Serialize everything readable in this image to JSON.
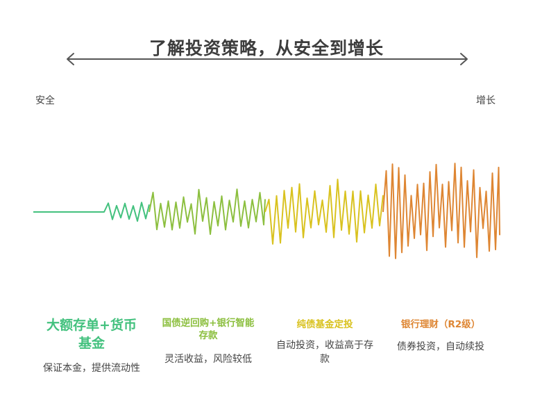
{
  "title": "了解投资策略，从安全到增长",
  "axis": {
    "left_label": "安全",
    "right_label": "增长"
  },
  "colors": {
    "green": "#43c17e",
    "lightgreen": "#8cbf3f",
    "yellow": "#d9c21f",
    "orange": "#de8633",
    "text": "#3d3d3d",
    "axis": "#555555"
  },
  "columns": [
    {
      "name": "大额存单+货币基金",
      "desc": "保证本金，提供流动性",
      "color": "#43c17e"
    },
    {
      "name": "国债逆回购+银行智能存款",
      "desc": "灵活收益，风险较低",
      "color": "#8cbf3f"
    },
    {
      "name": "纯债基金定投",
      "desc": "自动投资，收益高于存款",
      "color": "#d9c21f"
    },
    {
      "name": "银行理财（R2级）",
      "desc": "债券投资，自动续投",
      "color": "#de8633"
    }
  ]
}
